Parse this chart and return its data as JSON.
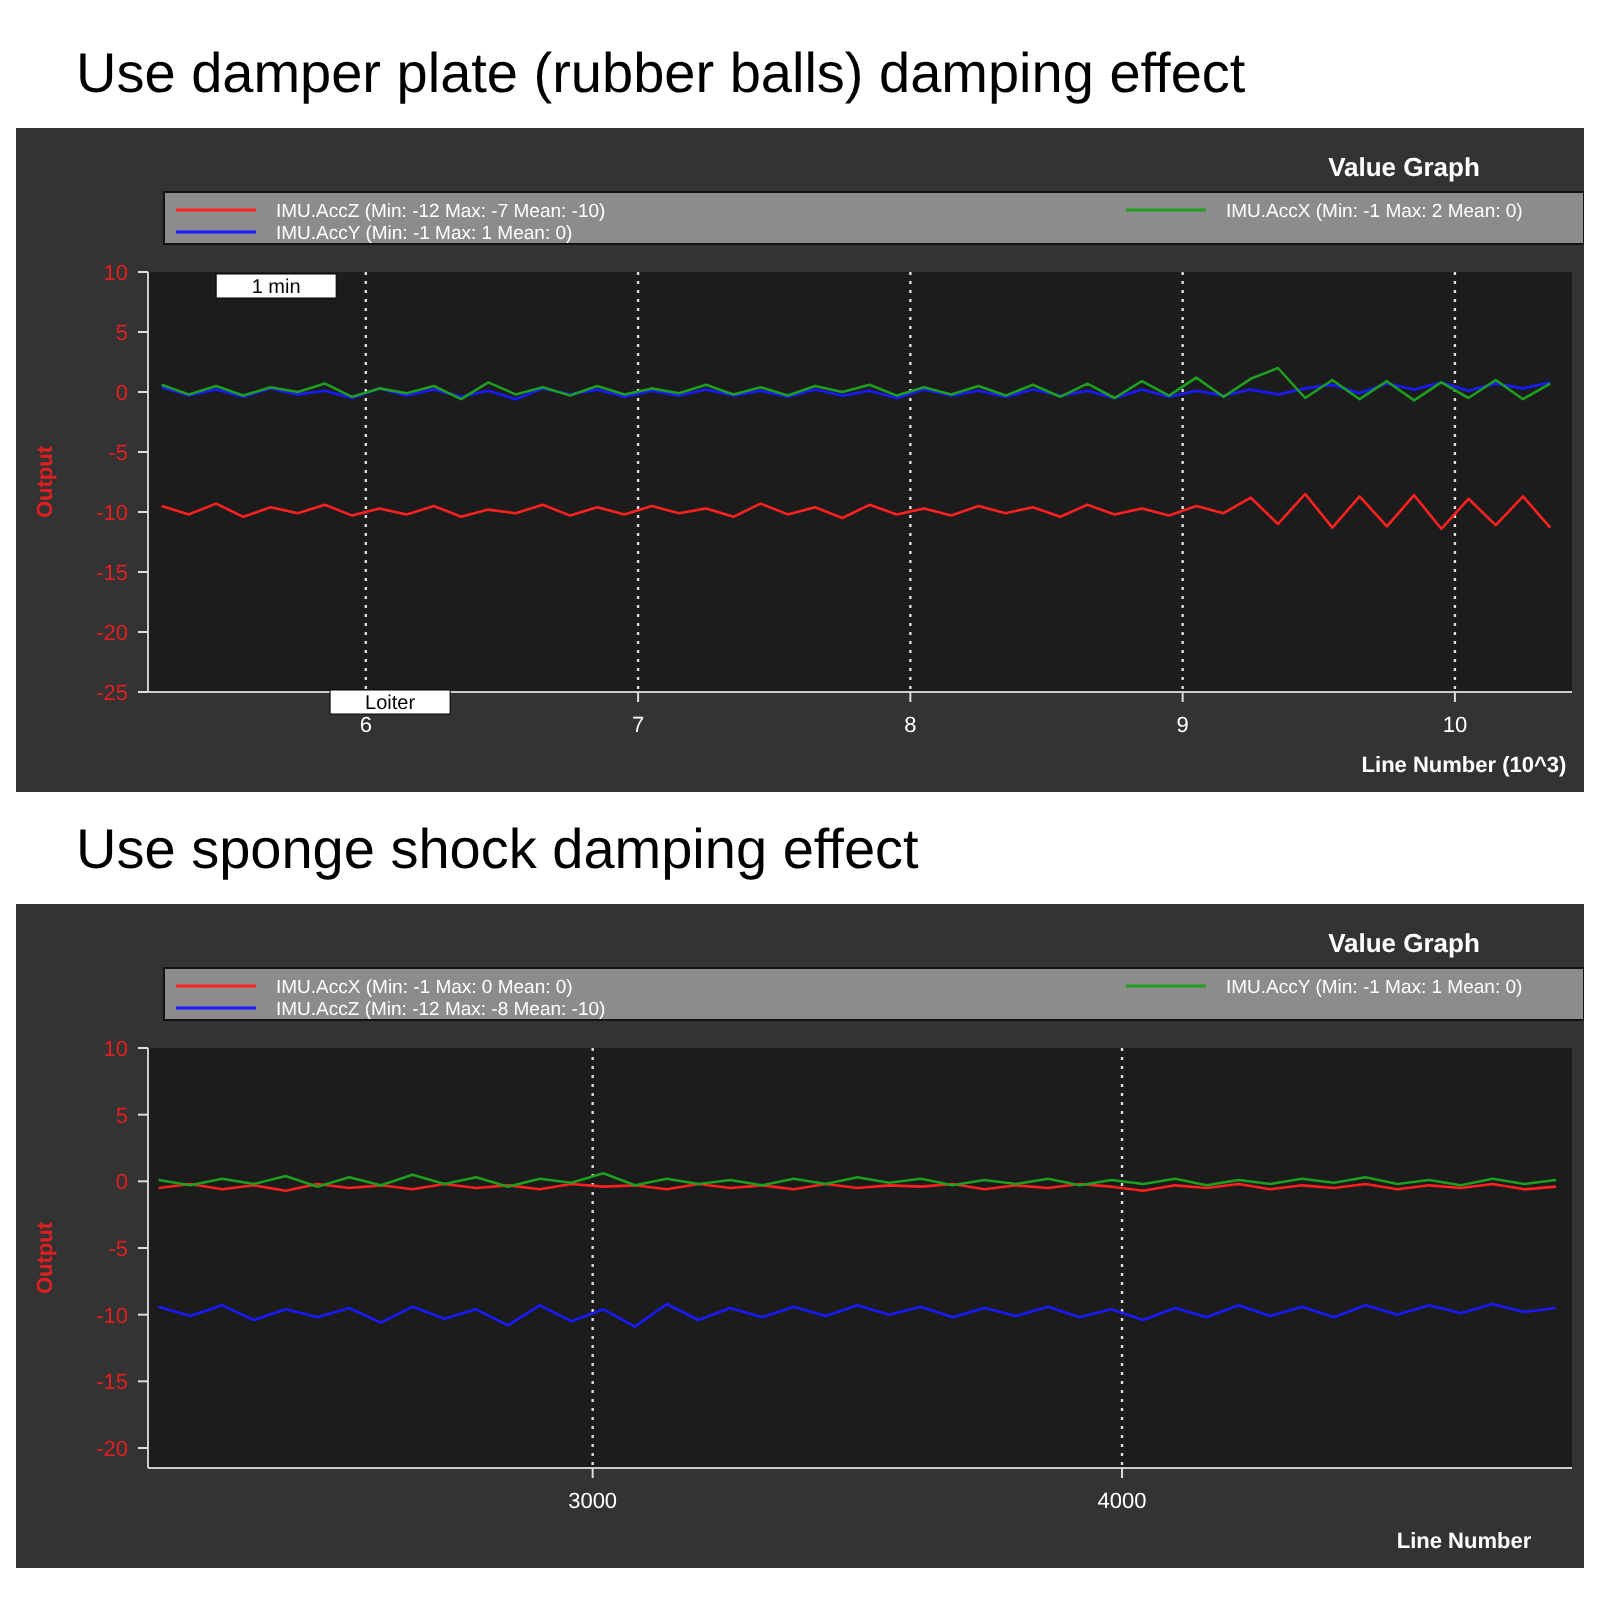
{
  "chart_data": [
    {
      "type": "line",
      "title": "Use damper plate (rubber balls) damping effect",
      "subtitle": "Value Graph",
      "xlabel": "Line Number (10^3)",
      "ylabel": "Output",
      "xlim": [
        5.2,
        10.43
      ],
      "xticks": [
        6,
        7,
        8,
        9,
        10
      ],
      "ylim": [
        -25,
        10
      ],
      "yticks": [
        -25,
        -20,
        -15,
        -10,
        -5,
        0,
        5,
        10
      ],
      "grid": "x",
      "legend": "top",
      "line_style": "solid",
      "marker": "none",
      "annotations": [
        "1 min",
        "Loiter"
      ],
      "x": [
        5.25,
        5.35,
        5.45,
        5.55,
        5.65,
        5.75,
        5.85,
        5.95,
        6.05,
        6.15,
        6.25,
        6.35,
        6.45,
        6.55,
        6.65,
        6.75,
        6.85,
        6.95,
        7.05,
        7.15,
        7.25,
        7.35,
        7.45,
        7.55,
        7.65,
        7.75,
        7.85,
        7.95,
        8.05,
        8.15,
        8.25,
        8.35,
        8.45,
        8.55,
        8.65,
        8.75,
        8.85,
        8.95,
        9.05,
        9.15,
        9.25,
        9.35,
        9.45,
        9.55,
        9.65,
        9.75,
        9.85,
        9.95,
        10.05,
        10.15,
        10.25,
        10.35
      ],
      "series": [
        {
          "name": "IMU.AccZ (Min: -12 Max: -7 Mean: -10)",
          "color": "#ff2020",
          "values": [
            -9.5,
            -10.2,
            -9.3,
            -10.4,
            -9.6,
            -10.1,
            -9.4,
            -10.3,
            -9.7,
            -10.2,
            -9.5,
            -10.4,
            -9.8,
            -10.1,
            -9.4,
            -10.3,
            -9.6,
            -10.2,
            -9.5,
            -10.1,
            -9.7,
            -10.4,
            -9.3,
            -10.2,
            -9.6,
            -10.5,
            -9.4,
            -10.2,
            -9.7,
            -10.3,
            -9.5,
            -10.1,
            -9.6,
            -10.4,
            -9.4,
            -10.2,
            -9.7,
            -10.3,
            -9.5,
            -10.1,
            -8.8,
            -11,
            -8.5,
            -11.3,
            -8.7,
            -11.2,
            -8.6,
            -11.4,
            -8.9,
            -11.1,
            -8.7,
            -11.3
          ]
        },
        {
          "name": "IMU.AccY (Min: -1 Max: 1 Mean: 0)",
          "color": "#1a1aff",
          "values": [
            0.4,
            -0.3,
            0.2,
            -0.4,
            0.3,
            -0.2,
            0.1,
            -0.5,
            0.3,
            -0.3,
            0.2,
            -0.4,
            0.1,
            -0.6,
            0.3,
            -0.2,
            0.2,
            -0.4,
            0.1,
            -0.3,
            0.2,
            -0.3,
            0.1,
            -0.4,
            0.2,
            -0.3,
            0.1,
            -0.5,
            0.2,
            -0.3,
            0.1,
            -0.4,
            0.2,
            -0.3,
            0.1,
            -0.5,
            0.2,
            -0.4,
            0.1,
            -0.3,
            0.2,
            -0.2,
            0.3,
            0.6,
            -0.1,
            0.7,
            0.2,
            0.8,
            0.1,
            0.7,
            0.3,
            0.8
          ]
        },
        {
          "name": "IMU.AccX (Min: -1 Max: 2 Mean: 0)",
          "color": "#1e9e1e",
          "values": [
            0.6,
            -0.2,
            0.5,
            -0.3,
            0.4,
            0,
            0.7,
            -0.4,
            0.3,
            -0.1,
            0.5,
            -0.6,
            0.8,
            -0.2,
            0.4,
            -0.3,
            0.5,
            -0.2,
            0.3,
            -0.1,
            0.6,
            -0.2,
            0.4,
            -0.3,
            0.5,
            0,
            0.6,
            -0.3,
            0.4,
            -0.2,
            0.5,
            -0.3,
            0.6,
            -0.4,
            0.7,
            -0.5,
            0.9,
            -0.3,
            1.2,
            -0.4,
            1.1,
            2,
            -0.5,
            1,
            -0.6,
            0.9,
            -0.7,
            0.8,
            -0.5,
            1,
            -0.6,
            0.7
          ]
        }
      ]
    },
    {
      "type": "line",
      "title": "Use sponge shock damping effect",
      "subtitle": "Value Graph",
      "xlabel": "Line Number",
      "ylabel": "Output",
      "xlim": [
        2160,
        4850
      ],
      "xticks": [
        3000,
        4000
      ],
      "ylim": [
        -21.5,
        10
      ],
      "yticks": [
        -20,
        -15,
        -10,
        -5,
        0,
        5,
        10
      ],
      "grid": "x",
      "legend": "top",
      "line_style": "solid",
      "marker": "none",
      "x": [
        2180,
        2240,
        2300,
        2360,
        2420,
        2480,
        2540,
        2600,
        2660,
        2720,
        2780,
        2840,
        2900,
        2960,
        3020,
        3080,
        3140,
        3200,
        3260,
        3320,
        3380,
        3440,
        3500,
        3560,
        3620,
        3680,
        3740,
        3800,
        3860,
        3920,
        3980,
        4040,
        4100,
        4160,
        4220,
        4280,
        4340,
        4400,
        4460,
        4520,
        4580,
        4640,
        4700,
        4760,
        4820
      ],
      "series": [
        {
          "name": "IMU.AccX (Min: -1 Max: 0 Mean: 0)",
          "color": "#ff2020",
          "values": [
            -0.5,
            -0.2,
            -0.6,
            -0.3,
            -0.7,
            -0.2,
            -0.5,
            -0.3,
            -0.6,
            -0.2,
            -0.5,
            -0.3,
            -0.6,
            -0.2,
            -0.4,
            -0.3,
            -0.6,
            -0.2,
            -0.5,
            -0.3,
            -0.6,
            -0.2,
            -0.5,
            -0.3,
            -0.4,
            -0.2,
            -0.6,
            -0.3,
            -0.5,
            -0.2,
            -0.4,
            -0.7,
            -0.3,
            -0.5,
            -0.2,
            -0.6,
            -0.3,
            -0.5,
            -0.2,
            -0.6,
            -0.3,
            -0.5,
            -0.2,
            -0.6,
            -0.4
          ]
        },
        {
          "name": "IMU.AccZ (Min: -12 Max: -8 Mean: -10)",
          "color": "#1a1aff",
          "values": [
            -9.4,
            -10.1,
            -9.3,
            -10.4,
            -9.6,
            -10.2,
            -9.5,
            -10.6,
            -9.4,
            -10.3,
            -9.6,
            -10.8,
            -9.3,
            -10.5,
            -9.6,
            -10.9,
            -9.2,
            -10.4,
            -9.5,
            -10.2,
            -9.4,
            -10.1,
            -9.3,
            -10,
            -9.4,
            -10.2,
            -9.5,
            -10.1,
            -9.4,
            -10.2,
            -9.6,
            -10.4,
            -9.5,
            -10.2,
            -9.3,
            -10.1,
            -9.4,
            -10.2,
            -9.3,
            -10,
            -9.3,
            -9.9,
            -9.2,
            -9.8,
            -9.5
          ]
        },
        {
          "name": "IMU.AccY (Min: -1 Max: 1 Mean: 0)",
          "color": "#1e9e1e",
          "values": [
            0.1,
            -0.3,
            0.2,
            -0.2,
            0.4,
            -0.4,
            0.3,
            -0.3,
            0.5,
            -0.2,
            0.3,
            -0.4,
            0.2,
            -0.1,
            0.6,
            -0.3,
            0.2,
            -0.2,
            0.1,
            -0.3,
            0.2,
            -0.2,
            0.3,
            -0.1,
            0.2,
            -0.3,
            0.1,
            -0.2,
            0.2,
            -0.3,
            0.1,
            -0.2,
            0.2,
            -0.3,
            0.1,
            -0.2,
            0.2,
            -0.1,
            0.3,
            -0.2,
            0.1,
            -0.3,
            0.2,
            -0.2,
            0.1
          ]
        }
      ]
    }
  ]
}
